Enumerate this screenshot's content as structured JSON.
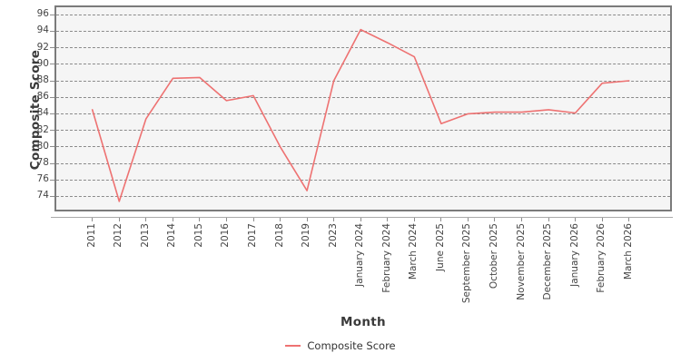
{
  "chart_data": {
    "type": "line",
    "title": "",
    "xlabel": "Month",
    "ylabel": "Composite Score",
    "categories": [
      "2011",
      "2012",
      "2013",
      "2014",
      "2015",
      "2016",
      "2017",
      "2018",
      "2019",
      "2023",
      "January 2024",
      "February 2024",
      "March 2024",
      "June 2025",
      "September 2025",
      "October 2025",
      "November 2025",
      "December 2025",
      "January 2026",
      "February 2026",
      "March 2026"
    ],
    "series": [
      {
        "name": "Composite Score",
        "color": "#ee7272",
        "values": [
          84.5,
          73.4,
          83.4,
          88.3,
          88.4,
          85.6,
          86.2,
          80.0,
          74.7,
          88.0,
          94.2,
          92.6,
          90.9,
          82.8,
          84.0,
          84.2,
          84.2,
          84.5,
          84.1,
          87.7,
          88.0
        ]
      }
    ],
    "yticks": [
      74,
      76,
      78,
      80,
      82,
      84,
      86,
      88,
      90,
      92,
      94,
      96
    ],
    "ylim": [
      72.4,
      96.9
    ],
    "grid": "horizontal-dashed",
    "legend_position": "bottom",
    "plot_background": "#f5f5f5",
    "grid_color": "#8a8a8a"
  },
  "legend": {
    "items": [
      {
        "label": "Composite Score",
        "color": "#ee7272"
      }
    ]
  }
}
